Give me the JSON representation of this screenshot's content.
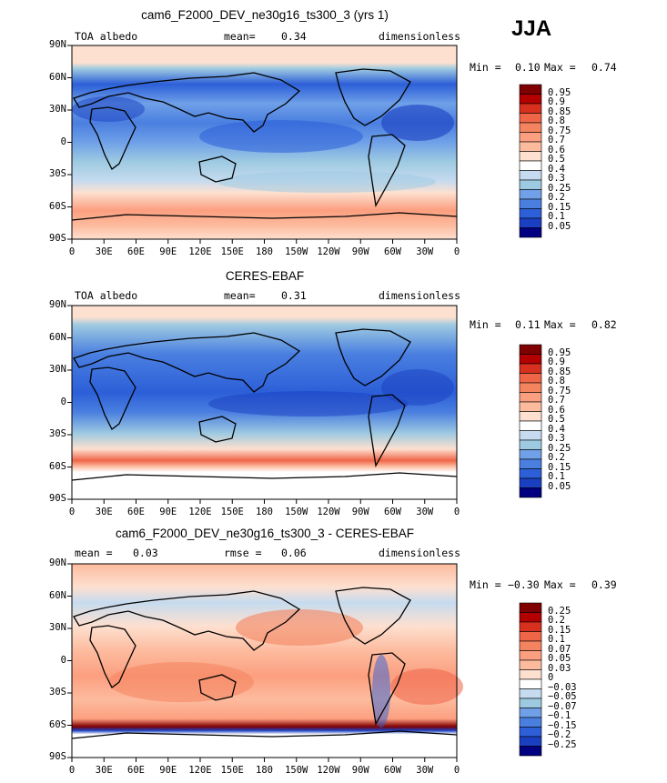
{
  "season": "JJA",
  "panels": [
    {
      "title": "cam6_F2000_DEV_ne30g16_ts300_3 (yrs 1)",
      "left_label": "TOA albedo",
      "mean_label": "mean=",
      "mean_value": "0.34",
      "right_label": "dimensionless",
      "min_label": "Min =",
      "min_value": "0.10",
      "max_label": "Max =",
      "max_value": "0.74"
    },
    {
      "title": "CERES-EBAF",
      "left_label": "TOA albedo",
      "mean_label": "mean=",
      "mean_value": "0.31",
      "right_label": "dimensionless",
      "min_label": "Min =",
      "min_value": "0.11",
      "max_label": "Max =",
      "max_value": "0.82"
    },
    {
      "title": "cam6_F2000_DEV_ne30g16_ts300_3 - CERES-EBAF",
      "left_label": "mean =",
      "left_value": "0.03",
      "center_label": "rmse =",
      "center_value": "0.06",
      "right_label": "dimensionless",
      "min_label": "Min =",
      "min_value": "−0.30",
      "max_label": "Max =",
      "max_value": "0.39"
    }
  ],
  "lat_ticks": [
    "90N",
    "60N",
    "30N",
    "0",
    "30S",
    "60S",
    "90S"
  ],
  "lon_ticks": [
    "0",
    "30E",
    "60E",
    "90E",
    "120E",
    "150E",
    "180",
    "150W",
    "120W",
    "90W",
    "60W",
    "30W",
    "0"
  ],
  "colorbar_abs": {
    "levels": [
      "0.95",
      "0.9",
      "0.85",
      "0.8",
      "0.75",
      "0.7",
      "0.6",
      "0.5",
      "0.4",
      "0.3",
      "0.25",
      "0.2",
      "0.15",
      "0.1",
      "0.05"
    ],
    "colors": [
      "#7f0000",
      "#b30000",
      "#d7301f",
      "#ef6548",
      "#f4845f",
      "#fc9f80",
      "#fdbb9e",
      "#fde0d0",
      "#ffffff",
      "#c6dbef",
      "#9ecae1",
      "#6fa0e8",
      "#4a7fe0",
      "#2c5fd8",
      "#1a3fc0",
      "#000080"
    ]
  },
  "colorbar_diff": {
    "levels": [
      "0.25",
      "0.2",
      "0.15",
      "0.1",
      "0.07",
      "0.05",
      "0.03",
      "0",
      "−0.03",
      "−0.05",
      "−0.07",
      "−0.1",
      "−0.15",
      "−0.2",
      "−0.25"
    ],
    "colors": [
      "#7f0000",
      "#b30000",
      "#d7301f",
      "#ef6548",
      "#f4845f",
      "#fc9f80",
      "#fdbb9e",
      "#fde0d0",
      "#ffffff",
      "#c6dbef",
      "#9ecae1",
      "#6fa0e8",
      "#4a7fe0",
      "#2c5fd8",
      "#1a3fc0",
      "#000080"
    ]
  },
  "chart_data": [
    {
      "type": "heatmap",
      "title": "cam6_F2000_DEV_ne30g16_ts300_3 (yrs 1)",
      "variable": "TOA albedo",
      "units": "dimensionless",
      "mean": 0.34,
      "min": 0.1,
      "max": 0.74,
      "x_ticks": [
        "0",
        "30E",
        "60E",
        "90E",
        "120E",
        "150E",
        "180",
        "150W",
        "120W",
        "90W",
        "60W",
        "30W",
        "0"
      ],
      "y_ticks": [
        "90N",
        "60N",
        "30N",
        "0",
        "30S",
        "60S",
        "90S"
      ],
      "contour_levels": [
        0.05,
        0.1,
        0.15,
        0.2,
        0.25,
        0.3,
        0.4,
        0.5,
        0.6,
        0.7,
        0.75,
        0.8,
        0.85,
        0.9,
        0.95
      ]
    },
    {
      "type": "heatmap",
      "title": "CERES-EBAF",
      "variable": "TOA albedo",
      "units": "dimensionless",
      "mean": 0.31,
      "min": 0.11,
      "max": 0.82,
      "x_ticks": [
        "0",
        "30E",
        "60E",
        "90E",
        "120E",
        "150E",
        "180",
        "150W",
        "120W",
        "90W",
        "60W",
        "30W",
        "0"
      ],
      "y_ticks": [
        "90N",
        "60N",
        "30N",
        "0",
        "30S",
        "60S",
        "90S"
      ],
      "contour_levels": [
        0.05,
        0.1,
        0.15,
        0.2,
        0.25,
        0.3,
        0.4,
        0.5,
        0.6,
        0.7,
        0.75,
        0.8,
        0.85,
        0.9,
        0.95
      ]
    },
    {
      "type": "heatmap",
      "title": "cam6_F2000_DEV_ne30g16_ts300_3 - CERES-EBAF",
      "units": "dimensionless",
      "mean": 0.03,
      "rmse": 0.06,
      "min": -0.3,
      "max": 0.39,
      "x_ticks": [
        "0",
        "30E",
        "60E",
        "90E",
        "120E",
        "150E",
        "180",
        "150W",
        "120W",
        "90W",
        "60W",
        "30W",
        "0"
      ],
      "y_ticks": [
        "90N",
        "60N",
        "30N",
        "0",
        "30S",
        "60S",
        "90S"
      ],
      "contour_levels": [
        -0.25,
        -0.2,
        -0.15,
        -0.1,
        -0.07,
        -0.05,
        -0.03,
        0,
        0.03,
        0.05,
        0.07,
        0.1,
        0.15,
        0.2,
        0.25
      ]
    }
  ]
}
